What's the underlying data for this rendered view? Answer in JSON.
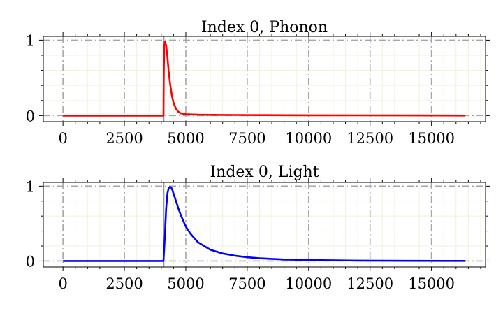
{
  "chart_data": [
    {
      "type": "line",
      "title": "Index 0, Phonon",
      "xlabel": "",
      "ylabel": "",
      "xlim": [
        -800,
        17200
      ],
      "ylim": [
        -0.08,
        1.05
      ],
      "xticks": [
        0,
        2500,
        5000,
        7500,
        10000,
        12500,
        15000
      ],
      "yticks": [
        0,
        1
      ],
      "grid": true,
      "color": "#ff0000",
      "trigger_line_x": 4100,
      "series": [
        {
          "name": "",
          "x": [
            0,
            4000,
            4090,
            4100,
            4120,
            4150,
            4200,
            4250,
            4300,
            4350,
            4400,
            4450,
            4500,
            4600,
            4700,
            4800,
            5000,
            5500,
            6000,
            7000,
            8000,
            10000,
            12000,
            14000,
            16383
          ],
          "y": [
            0,
            0,
            0,
            0.45,
            0.92,
            0.98,
            0.93,
            0.78,
            0.6,
            0.45,
            0.33,
            0.24,
            0.17,
            0.09,
            0.05,
            0.03,
            0.018,
            0.012,
            0.01,
            0.008,
            0.006,
            0.004,
            0.003,
            0.002,
            0.001
          ]
        }
      ]
    },
    {
      "type": "line",
      "title": "Index 0, Light",
      "xlabel": "",
      "ylabel": "",
      "xlim": [
        -800,
        17200
      ],
      "ylim": [
        -0.08,
        1.05
      ],
      "xticks": [
        0,
        2500,
        5000,
        7500,
        10000,
        12500,
        15000
      ],
      "yticks": [
        0,
        1
      ],
      "grid": true,
      "color": "#0000ff",
      "trigger_line_x": 4100,
      "series": [
        {
          "name": "",
          "x": [
            0,
            4000,
            4090,
            4100,
            4150,
            4200,
            4250,
            4300,
            4350,
            4400,
            4450,
            4500,
            4600,
            4700,
            4800,
            5000,
            5200,
            5500,
            6000,
            6500,
            7000,
            7500,
            8000,
            9000,
            10000,
            12000,
            14000,
            16383
          ],
          "y": [
            0,
            0,
            0,
            0.05,
            0.35,
            0.7,
            0.9,
            0.97,
            0.99,
            0.985,
            0.95,
            0.9,
            0.8,
            0.7,
            0.61,
            0.46,
            0.36,
            0.25,
            0.15,
            0.1,
            0.07,
            0.05,
            0.036,
            0.02,
            0.012,
            0.005,
            0.002,
            0.001
          ]
        }
      ]
    }
  ]
}
